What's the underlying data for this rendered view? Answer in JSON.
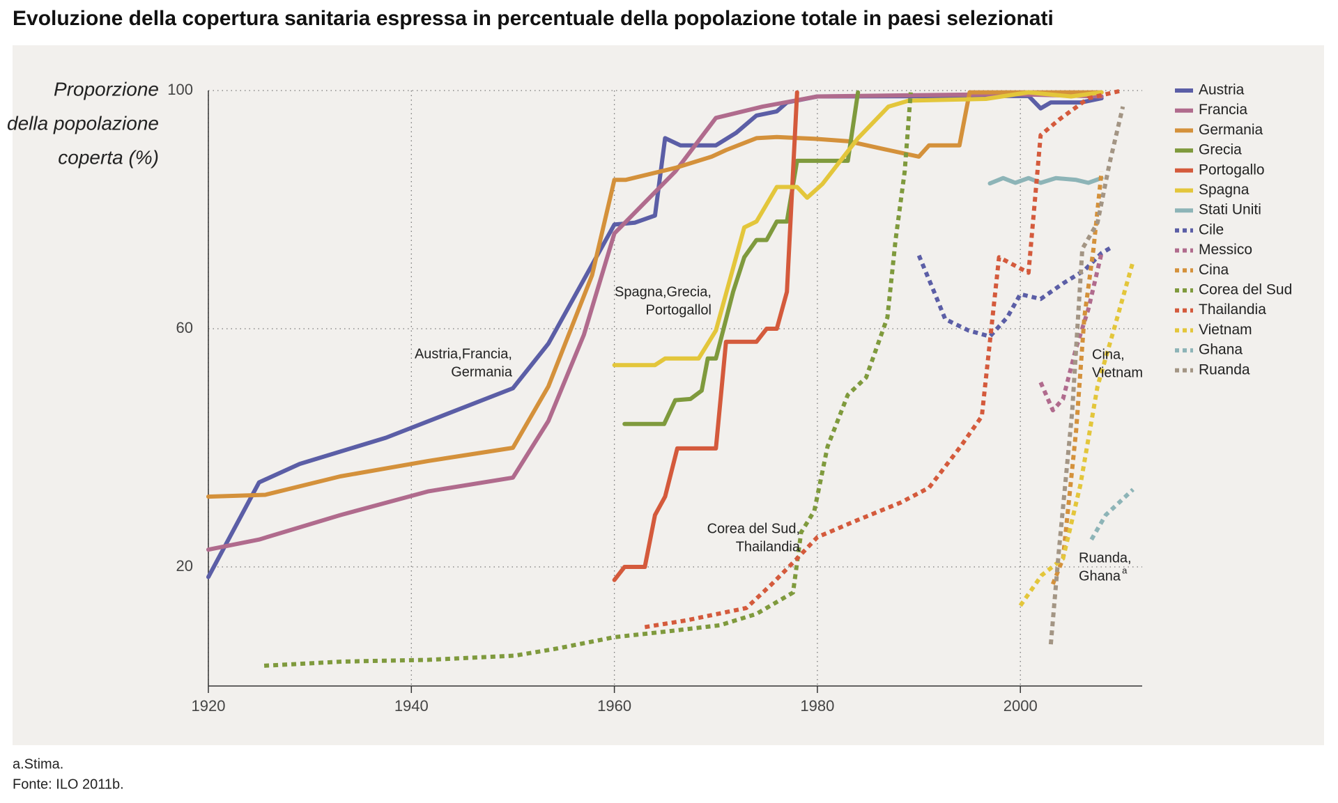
{
  "chart_data": {
    "type": "line",
    "title": "Evoluzione della copertura sanitaria espressa in percentuale della popolazione totale in paesi selezionati",
    "y_label": [
      "Proporzione",
      "della popolazione",
      "coperta (%)"
    ],
    "xlim": [
      1920,
      2012
    ],
    "xticks": [
      1920,
      1940,
      1960,
      1980,
      2000
    ],
    "ylim": [
      0,
      100
    ],
    "yticks": [
      20,
      60,
      100
    ],
    "grid": true,
    "legend": "right",
    "series": [
      {
        "name": "Austria",
        "color": "#5b5ea6",
        "style": "solid",
        "x": [
          1920,
          1925,
          1929,
          1937.5,
          1950,
          1953.5,
          1960,
          1962,
          1964,
          1965,
          1966.5,
          1970,
          1972,
          1974,
          1976,
          1977,
          1980,
          2000.8,
          2002,
          2003,
          2006,
          2008
        ],
        "values": [
          18.3,
          34.2,
          37.3,
          41.7,
          50,
          57.5,
          77.5,
          77.8,
          79,
          92,
          90.8,
          90.8,
          92.9,
          95.8,
          96.5,
          98,
          99,
          99.1,
          97,
          98,
          98,
          98.7
        ]
      },
      {
        "name": "Francia",
        "color": "#b06b8d",
        "style": "solid",
        "x": [
          1920,
          1925,
          1933,
          1941.7,
          1950,
          1953.5,
          1957,
          1960,
          1966,
          1970,
          1974.6,
          1980,
          1999,
          2008
        ],
        "values": [
          22.9,
          24.6,
          28.7,
          32.7,
          35,
          44.5,
          59,
          76,
          86.4,
          95.4,
          97.3,
          99,
          99.4,
          99
        ]
      },
      {
        "name": "Germania",
        "color": "#d4913b",
        "style": "solid",
        "x": [
          1920,
          1925.6,
          1933,
          1941.7,
          1950,
          1953.5,
          1957.8,
          1960,
          1961.1,
          1966,
          1969.6,
          1971,
          1974,
          1976,
          1979.7,
          1983,
          1987,
          1990,
          1991,
          1994,
          1995,
          2008
        ],
        "values": [
          31.8,
          32.1,
          35.2,
          37.8,
          40,
          50.3,
          69,
          85,
          85,
          87,
          88.9,
          90,
          92,
          92.2,
          91.9,
          91.5,
          90,
          88.9,
          90.8,
          90.8,
          99.7,
          99.7
        ]
      },
      {
        "name": "Grecia",
        "color": "#7f9a3d",
        "style": "solid",
        "x": [
          1961,
          1964.9,
          1966,
          1967.5,
          1968.6,
          1969.2,
          1970,
          1971.7,
          1972.8,
          1974,
          1975,
          1976,
          1977,
          1978,
          1983,
          1984
        ],
        "values": [
          44,
          44,
          48,
          48.2,
          49.6,
          55,
          55,
          66.2,
          72,
          74.9,
          74.9,
          78,
          78,
          88.2,
          88.2,
          99.7
        ]
      },
      {
        "name": "Portogallo",
        "color": "#d45a3c",
        "style": "solid",
        "x": [
          1960,
          1961,
          1963,
          1964,
          1965,
          1966.2,
          1970,
          1971,
          1974,
          1975,
          1976,
          1977,
          1978
        ],
        "values": [
          17.8,
          20,
          20,
          28.7,
          31.8,
          39.9,
          39.9,
          57.8,
          57.8,
          60,
          60,
          66.2,
          99.7
        ]
      },
      {
        "name": "Spagna",
        "color": "#e3c63b",
        "style": "solid",
        "x": [
          1960,
          1964,
          1965,
          1968.3,
          1970,
          1972.8,
          1974,
          1976,
          1978,
          1979,
          1980.5,
          1984,
          1987,
          1989,
          1996.6,
          2000.8,
          2005,
          2008
        ],
        "values": [
          53.9,
          53.9,
          55,
          55,
          59.7,
          77,
          78,
          83.8,
          83.8,
          82,
          84.3,
          92,
          97.3,
          98.3,
          98.6,
          99.7,
          99,
          99.7
        ]
      },
      {
        "name": "Stati Uniti",
        "color": "#8db4b7",
        "style": "solid",
        "x": [
          1997,
          1998.3,
          1999.5,
          2000.8,
          2002,
          2003.5,
          2005.5,
          2006.7,
          2008
        ],
        "values": [
          84.4,
          85.3,
          84.5,
          85.3,
          84.5,
          85.3,
          85,
          84.5,
          85.3
        ]
      },
      {
        "name": "Cile",
        "color": "#5b5ea6",
        "style": "dotted",
        "x": [
          1990,
          1991.5,
          1992.6,
          1994.9,
          1997,
          1998.7,
          2000,
          2002,
          2004.2,
          2006.3,
          2008,
          2009
        ],
        "values": [
          72.3,
          66.2,
          61.6,
          59.7,
          58.7,
          61.9,
          65.8,
          65,
          67.6,
          69.8,
          72.7,
          73.7
        ]
      },
      {
        "name": "Messico",
        "color": "#b06b8d",
        "style": "dotted",
        "x": [
          2002,
          2003.2,
          2004.2,
          2005.5,
          2006.7,
          2008
        ],
        "values": [
          51,
          46.3,
          48.2,
          56.8,
          63.3,
          72.7
        ]
      },
      {
        "name": "Cina",
        "color": "#d4913b",
        "style": "dotted",
        "x": [
          2003.2,
          2004.2,
          2005.5,
          2006.3,
          2007.2,
          2008
        ],
        "values": [
          17.1,
          21.4,
          43,
          61.9,
          73.4,
          86.4
        ]
      },
      {
        "name": "Corea del Sud",
        "color": "#7f9a3d",
        "style": "dotted",
        "x": [
          1925.5,
          1933.3,
          1941.7,
          1950.2,
          1954.4,
          1960,
          1965.4,
          1970.4,
          1974,
          1977.6,
          1978.4,
          1979.7,
          1981,
          1983,
          1984.8,
          1986.9,
          1987.7,
          1988.6,
          1989.2
        ],
        "values": [
          3.4,
          4.1,
          4.4,
          5.1,
          6.3,
          8.2,
          9.2,
          10.2,
          12.1,
          15.7,
          25.8,
          29.4,
          40.2,
          48.9,
          51.8,
          61.9,
          74.9,
          86.4,
          99.7
        ]
      },
      {
        "name": "Thailandia",
        "color": "#d45a3c",
        "style": "dotted",
        "x": [
          1963,
          1967,
          1971.3,
          1973,
          1975.5,
          1978,
          1980,
          1984,
          1988.2,
          1991,
          1994.1,
          1996.2,
          1997.9,
          2000.8,
          2002,
          2003.8,
          2006.7,
          2010
        ],
        "values": [
          9.9,
          11,
          12.5,
          13.1,
          17.1,
          21.4,
          25,
          27.9,
          30.8,
          33.3,
          40.2,
          45.3,
          72,
          69.4,
          92.5,
          95.1,
          98.7,
          100
        ]
      },
      {
        "name": "Vietnam",
        "color": "#e3c63b",
        "style": "dotted",
        "x": [
          2000,
          2002.1,
          2004.2,
          2005.9,
          2007.6,
          2009.3,
          2011.1
        ],
        "values": [
          13.5,
          18.6,
          21.4,
          33.7,
          50.3,
          60.4,
          71.3
        ]
      },
      {
        "name": "Ghana",
        "color": "#8db4b7",
        "style": "dotted",
        "x": [
          2007,
          2008.4,
          2011.1
        ],
        "values": [
          24.6,
          28.7,
          33
        ]
      },
      {
        "name": "Ruanda",
        "color": "#a39584",
        "style": "dotted",
        "x": [
          2003,
          2003.8,
          2005.1,
          2006.1,
          2007.6,
          2008.8,
          2010.1
        ],
        "values": [
          7,
          22.9,
          46,
          73.4,
          77.8,
          87.9,
          97.3
        ]
      }
    ],
    "annotations": [
      {
        "lines": [
          "Austria,Francia,",
          "Germania"
        ]
      },
      {
        "lines": [
          "Spagna,Grecia,",
          "Portogallol"
        ]
      },
      {
        "lines": [
          "Corea del Sud,",
          "Thailandia"
        ]
      },
      {
        "lines": [
          "Cina,",
          "Vietnam"
        ]
      },
      {
        "lines": [
          "Ruanda,",
          "Ghana"
        ],
        "superscript": "a"
      }
    ],
    "footnotes": [
      "a.Stima.",
      "Fonte: ILO 2011b."
    ]
  }
}
